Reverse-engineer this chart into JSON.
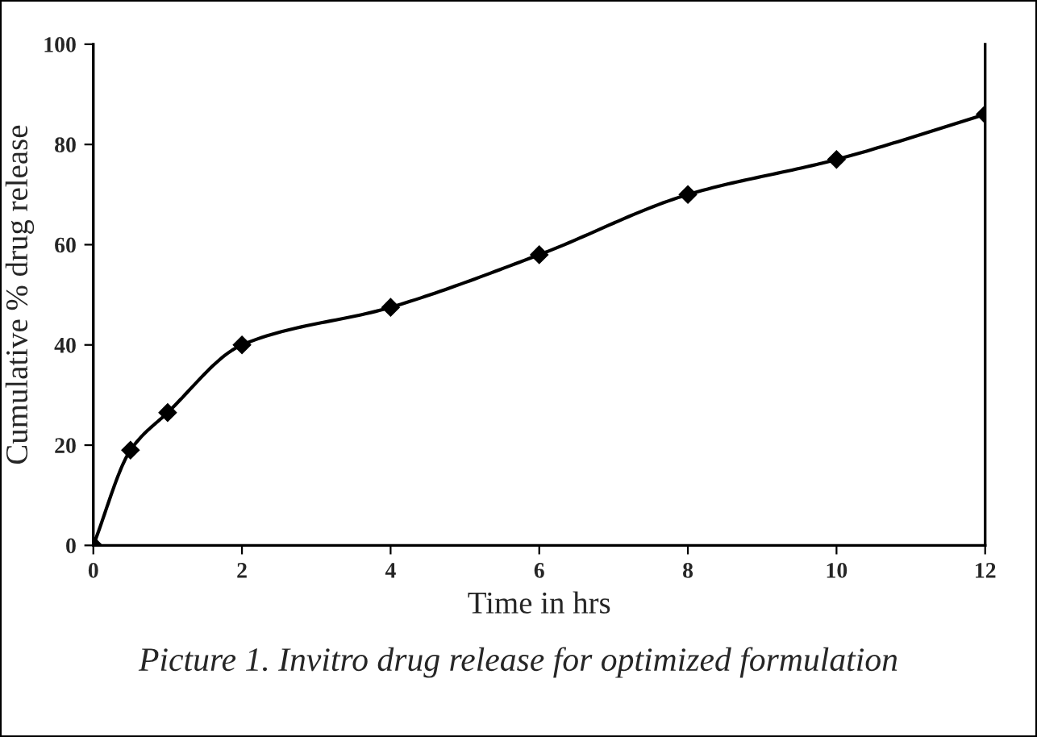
{
  "chart_data": {
    "type": "line",
    "xlabel": "Time in hrs",
    "ylabel": "Cumulative % drug release",
    "annotations": [
      "Picture 1. Invitro drug release for optimized formulation"
    ],
    "x": [
      0,
      0.5,
      1,
      2,
      4,
      6,
      8,
      10,
      12
    ],
    "series": [
      {
        "color": "#000000",
        "values": [
          0,
          19,
          26.5,
          40,
          47.5,
          58,
          70,
          77,
          86
        ]
      }
    ],
    "xlim": [
      0,
      12
    ],
    "xticks": [
      0,
      2,
      4,
      6,
      8,
      10,
      12
    ],
    "ylim": [
      0,
      100
    ],
    "yticks": [
      0,
      20,
      40,
      60,
      80,
      100
    ],
    "grid": false,
    "legend": false,
    "marker": "diamond",
    "line_style": "solid"
  }
}
